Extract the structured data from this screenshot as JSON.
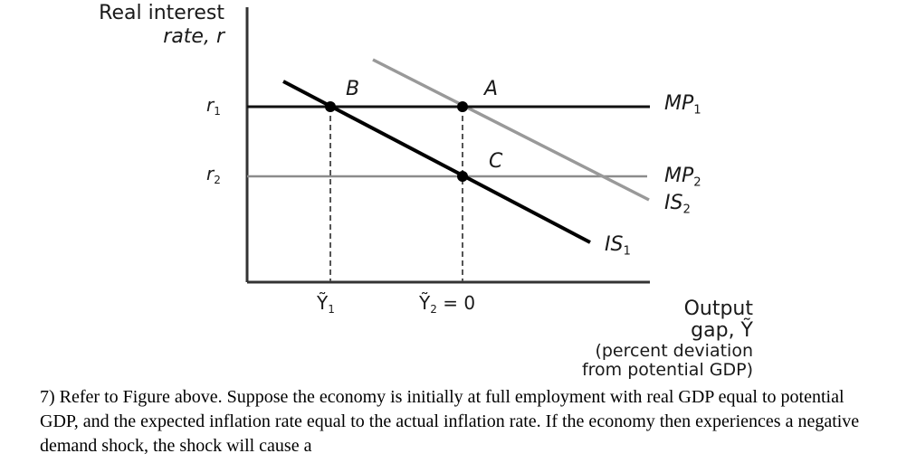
{
  "diagram": {
    "y_axis_title_line1": "Real interest",
    "y_axis_title_line2": "rate, r",
    "x_axis_title_line1": "Output",
    "x_axis_title_line2": "gap, Ỹ",
    "x_axis_note_line1": "(percent deviation",
    "x_axis_note_line2": "from potential GDP)",
    "r_ticks": [
      {
        "main": "r",
        "sub": "1"
      },
      {
        "main": "r",
        "sub": "2"
      }
    ],
    "y_ticks": [
      {
        "main": "Ỹ",
        "sub": "1",
        "suffix": ""
      },
      {
        "main": "Ỹ",
        "sub": "2",
        "suffix": " = 0"
      }
    ],
    "curves": {
      "MP1": {
        "main": "MP",
        "sub": "1",
        "color": "#111111"
      },
      "MP2": {
        "main": "MP",
        "sub": "2",
        "color": "#8c8c8c"
      },
      "IS1": {
        "main": "IS",
        "sub": "1",
        "color": "#000000"
      },
      "IS2": {
        "main": "IS",
        "sub": "2",
        "color": "#999999"
      }
    },
    "points": {
      "A": "A",
      "B": "B",
      "C": "C"
    }
  },
  "question": {
    "text": "7) Refer to Figure above. Suppose the economy is initially at full employment with real GDP equal to potential GDP, and the expected inflation rate equal to the actual inflation rate. If the economy then experiences a negative demand shock, the shock will cause a"
  }
}
